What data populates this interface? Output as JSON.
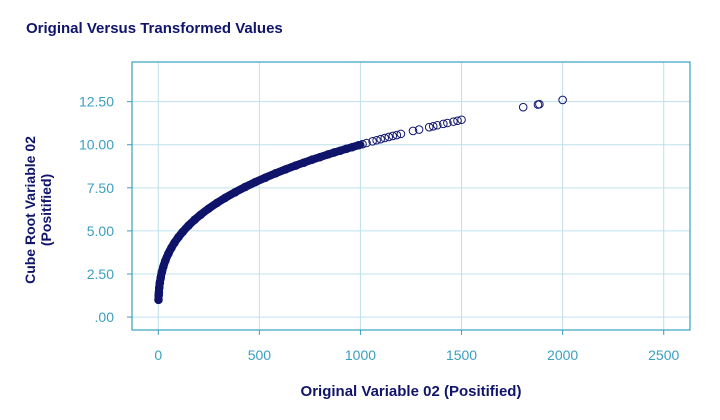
{
  "chart_data": {
    "type": "scatter",
    "title": "Original Versus Transformed Values",
    "xlabel": "Original Variable 02 (Positified)",
    "ylabel_lines": [
      "Cube Root Variable 02",
      "(Positified)"
    ],
    "xlim": [
      -130,
      2630
    ],
    "ylim": [
      -0.75,
      14.8
    ],
    "xticks": [
      0,
      500,
      1000,
      1500,
      2000,
      2500
    ],
    "xtick_labels": [
      "0",
      "500",
      "1000",
      "1500",
      "2000",
      "2500"
    ],
    "yticks": [
      0,
      2.5,
      5,
      7.5,
      10,
      12.5
    ],
    "ytick_labels": [
      ".00",
      "2.50",
      "5.00",
      "7.50",
      "10.00",
      "12.50"
    ],
    "grid": true,
    "colors": {
      "marker": "#10156b",
      "axis": "#3a9fbf",
      "grid": "#bfe0ec",
      "text": "#10156b"
    },
    "series": [
      {
        "x": [
          1,
          2,
          3,
          5,
          8,
          12,
          18,
          25,
          35,
          50,
          65,
          80,
          100,
          120,
          150,
          180,
          210,
          250,
          290,
          330,
          380,
          430,
          480,
          530,
          580,
          630,
          680,
          720,
          760,
          800,
          840,
          870,
          900,
          930,
          960,
          990,
          1010,
          1030,
          1060,
          1080,
          1100,
          1120,
          1140,
          1160,
          1180,
          1200,
          1260,
          1290,
          1340,
          1360,
          1380,
          1410,
          1430,
          1460,
          1480,
          1500,
          1805,
          1878,
          1885,
          2000
        ],
        "y": [
          1.0,
          1.26,
          1.44,
          1.71,
          2.0,
          2.29,
          2.62,
          2.92,
          3.27,
          3.68,
          4.02,
          4.31,
          4.64,
          4.93,
          5.31,
          5.65,
          5.94,
          6.3,
          6.62,
          6.91,
          7.24,
          7.55,
          7.83,
          8.09,
          8.34,
          8.57,
          8.79,
          8.96,
          9.13,
          9.28,
          9.44,
          9.55,
          9.65,
          9.76,
          9.86,
          9.97,
          10.03,
          10.1,
          10.2,
          10.26,
          10.32,
          10.39,
          10.45,
          10.51,
          10.56,
          10.63,
          10.8,
          10.88,
          11.02,
          11.07,
          11.13,
          11.21,
          11.26,
          11.34,
          11.39,
          11.45,
          12.18,
          12.33,
          12.35,
          12.6
        ]
      }
    ]
  }
}
